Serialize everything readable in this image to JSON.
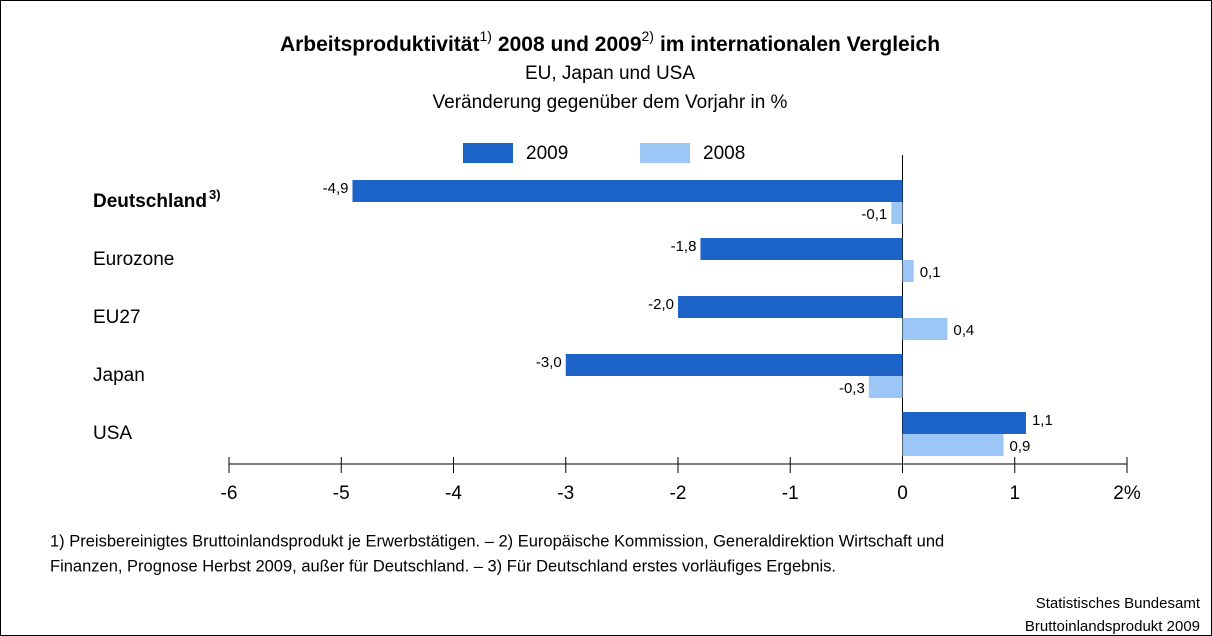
{
  "chart_data": {
    "type": "hbar",
    "title": [
      "Arbeitsproduktivität",
      "1)",
      "2008 und 2009",
      "2)",
      "im internationalen Vergleich"
    ],
    "subtitle": [
      "EU, Japan und USA",
      "Veränderung gegenüber dem Vorjahr in %"
    ],
    "categories": [
      "Deutschland",
      "Eurozone",
      "EU27",
      "Japan",
      "USA"
    ],
    "category_superscripts": [
      "3)",
      null,
      null,
      null,
      null
    ],
    "highlight_index": 0,
    "series": [
      {
        "name": "2009",
        "color": "#1d64c8",
        "values": [
          -4.9,
          -1.8,
          -2.0,
          -3.0,
          1.1
        ],
        "value_labels": [
          "-4,9",
          "-1,8",
          "-2,0",
          "-3,0",
          "1,1"
        ]
      },
      {
        "name": "2008",
        "color": "#9cc6f6",
        "values": [
          -0.1,
          0.1,
          0.4,
          -0.3,
          0.9
        ],
        "value_labels": [
          "-0,1",
          "0,1",
          "0,4",
          "-0,3",
          "0,9"
        ]
      }
    ],
    "xlim": [
      -6,
      2
    ],
    "xticks": [
      -6,
      -5,
      -4,
      -3,
      -2,
      -1,
      0,
      1,
      {
        "value": 2,
        "label": "2%"
      }
    ],
    "footnotes": [
      "1) Preisbereinigtes Bruttoinlandsprodukt je Erwerbstätigen. – 2) Europäische Kommission, Generaldirektion Wirtschaft und",
      "Finanzen, Prognose Herbst 2009, außer für Deutschland. – 3) Für Deutschland erstes vorläufiges Ergebnis."
    ],
    "source": [
      "Statistisches Bundesamt",
      "Bruttoinlandsprodukt 2009"
    ]
  }
}
